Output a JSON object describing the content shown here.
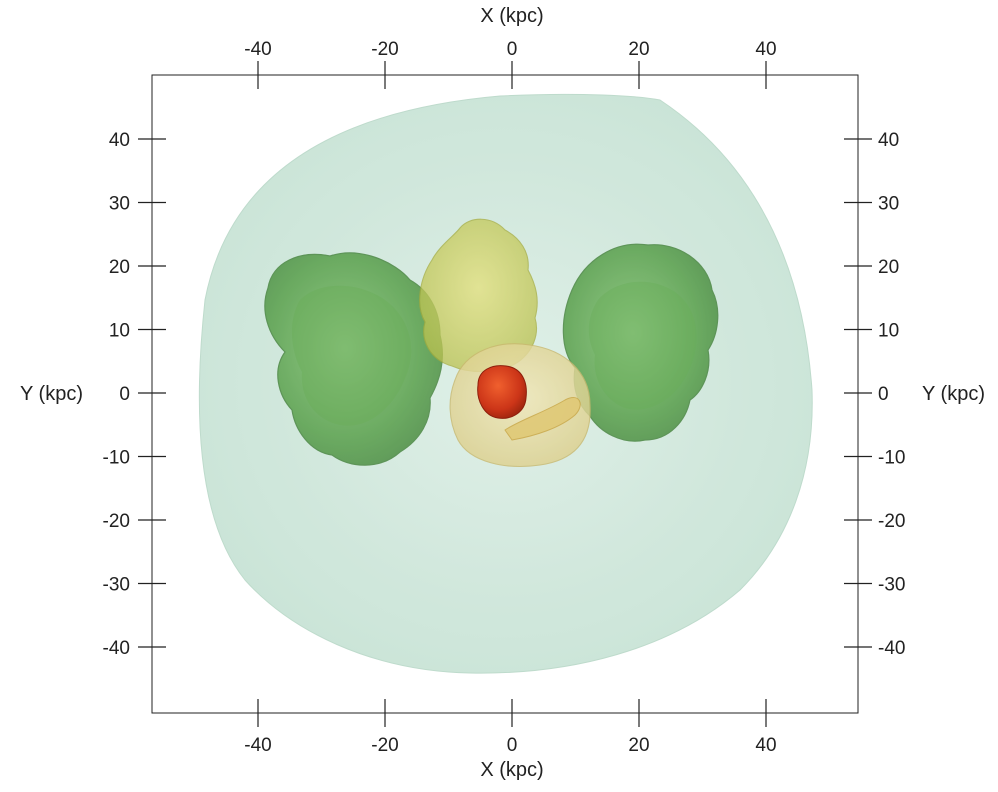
{
  "axes": {
    "x_title": "X (kpc)",
    "y_title": "Y (kpc)",
    "x_range": [
      -56,
      56
    ],
    "y_range": [
      -50,
      50
    ],
    "x_ticks": [
      -40,
      -20,
      0,
      20,
      40
    ],
    "y_ticks": [
      40,
      30,
      20,
      10,
      0,
      -10,
      -20,
      -30,
      -40
    ],
    "x_tick_labels": [
      "-40",
      "-20",
      "0",
      "20",
      "40"
    ],
    "y_tick_labels": [
      "40",
      "30",
      "20",
      "10",
      "0",
      "-10",
      "-20",
      "-30",
      "-40"
    ]
  },
  "colors": {
    "outer_halo": "#cfe8dc",
    "green_lobes": "#4e9a3c",
    "yellow_structure": "#cfcf5a",
    "inner_shell": "#e9dca0",
    "core": "#d0361c",
    "frame": "#222222"
  },
  "features": [
    "outer-halo",
    "left-green-lobe",
    "right-green-lobe",
    "upper-yellow-plume",
    "central-yellow-shell",
    "red-core"
  ]
}
